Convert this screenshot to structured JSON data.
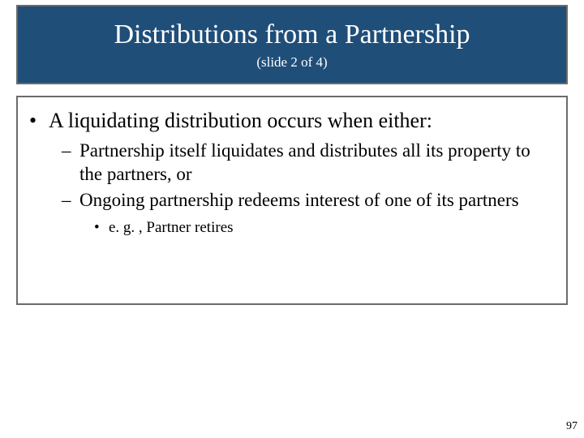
{
  "title": {
    "main": "Distributions from a Partnership",
    "sub": "(slide 2 of 4)"
  },
  "body": {
    "point": "A liquidating distribution occurs when either:",
    "subpoints": [
      "Partnership itself liquidates and distributes all its property to the partners, or",
      "Ongoing partnership redeems interest of one of its partners"
    ],
    "example": "e. g. , Partner retires"
  },
  "page_number": "97",
  "colors": {
    "title_bg": "#1f4e79",
    "title_text": "#ffffff",
    "border": "#6b6b6b",
    "body_text": "#000000",
    "slide_bg": "#ffffff"
  }
}
